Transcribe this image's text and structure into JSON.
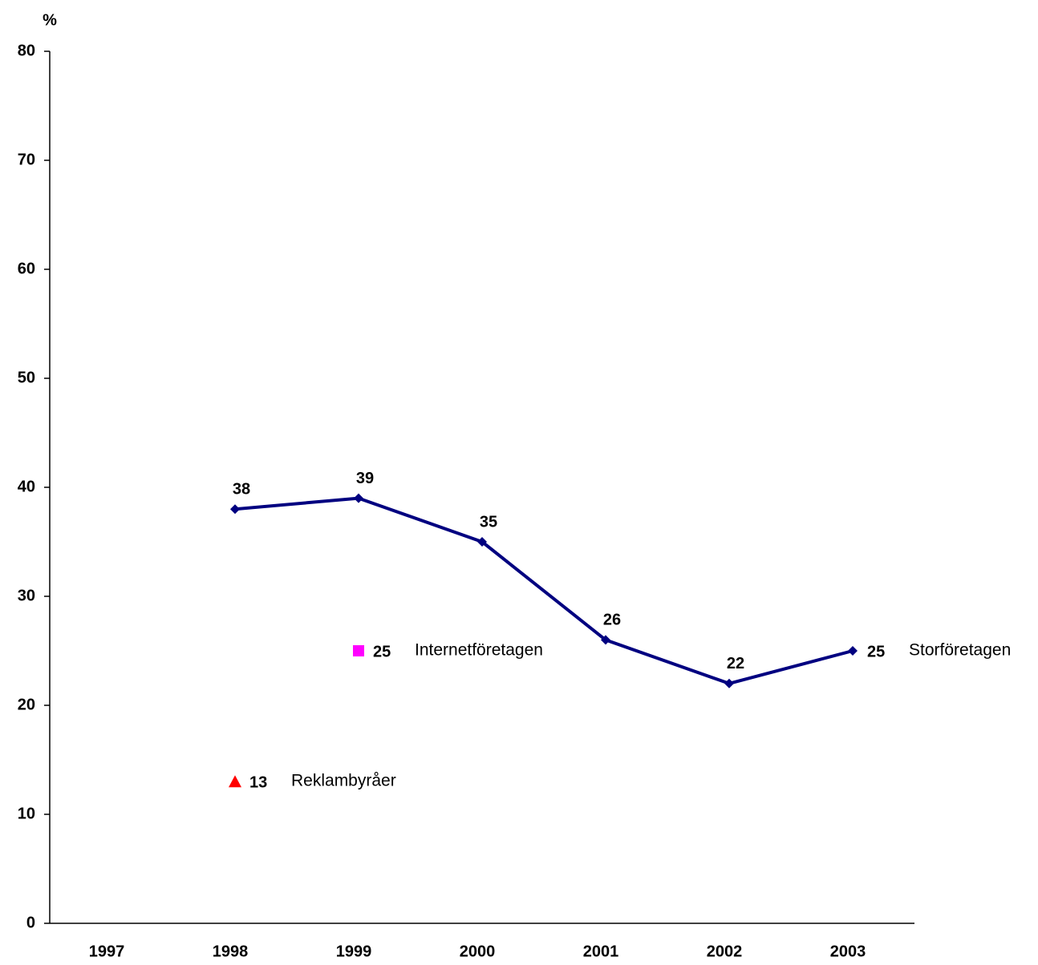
{
  "chart_data": {
    "type": "line",
    "y_label": "%",
    "categories": [
      "1997",
      "1998",
      "1999",
      "2000",
      "2001",
      "2002",
      "2003"
    ],
    "series": [
      {
        "name": "Storföretagen",
        "color": "#000080",
        "marker": "diamond",
        "values": [
          null,
          38,
          39,
          35,
          26,
          22,
          25
        ]
      },
      {
        "name": "Internetföretagen",
        "color": "#ff00ff",
        "marker": "square",
        "values": [
          null,
          null,
          25,
          null,
          null,
          null,
          null
        ]
      },
      {
        "name": "Reklambyråer",
        "color": "#ff0000",
        "marker": "triangle",
        "values": [
          null,
          13,
          null,
          null,
          null,
          null,
          null
        ]
      }
    ],
    "ylim": [
      0,
      80
    ],
    "yticks": [
      0,
      10,
      20,
      30,
      40,
      50,
      60,
      70,
      80
    ],
    "grid": false
  }
}
